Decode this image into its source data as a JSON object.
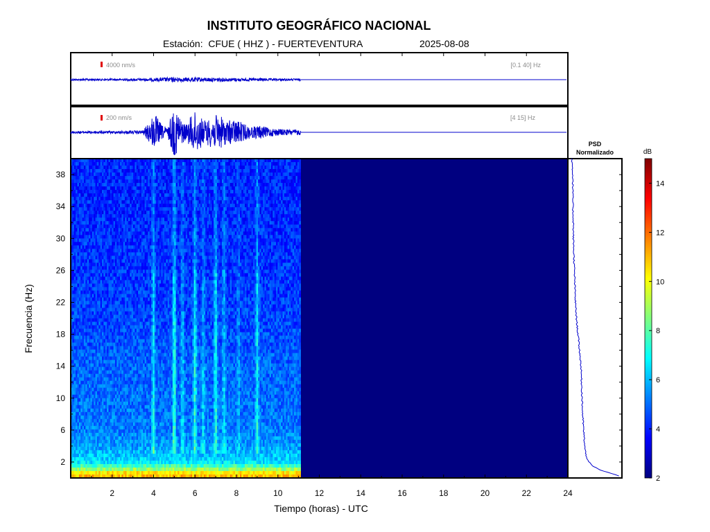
{
  "header": {
    "title": "INSTITUTO GEOGRÁFICO NACIONAL",
    "station": "Estación:  CFUE ( HHZ ) - FUERTEVENTURA",
    "date": "2025-08-08"
  },
  "colors": {
    "trace": "#0000cc",
    "scale_marker": "#e00000",
    "empty_spectrogram": "#000080",
    "annotation_gray": "#8a8a8a"
  },
  "chart_data": [
    {
      "type": "line",
      "panel": "broadband seismogram",
      "scale_label": "4000 nm/s",
      "filter_label": "[0.1 40] Hz",
      "x_range_hours": [
        0,
        24
      ],
      "data_until_hours": 11.1,
      "envelope_hours": [
        0,
        0.5,
        1,
        1.5,
        2,
        2.5,
        3,
        3.5,
        4,
        4.5,
        5,
        5.5,
        6,
        6.5,
        7,
        7.5,
        8,
        8.5,
        9,
        9.5,
        10,
        10.5,
        11
      ],
      "envelope_amplitude": [
        0.04,
        0.04,
        0.05,
        0.04,
        0.05,
        0.05,
        0.06,
        0.06,
        0.08,
        0.1,
        0.12,
        0.1,
        0.11,
        0.1,
        0.1,
        0.09,
        0.08,
        0.07,
        0.08,
        0.06,
        0.05,
        0.05,
        0.05
      ]
    },
    {
      "type": "line",
      "panel": "filtered seismogram",
      "scale_label": "200 nm/s",
      "filter_label": "[4 15] Hz",
      "x_range_hours": [
        0,
        24
      ],
      "data_until_hours": 11.1,
      "envelope_hours": [
        0,
        0.5,
        1,
        1.5,
        2,
        2.5,
        3,
        3.5,
        3.9,
        4.1,
        4.4,
        4.7,
        4.9,
        5.1,
        5.4,
        5.6,
        5.9,
        6.1,
        6.4,
        6.6,
        6.9,
        7.1,
        7.4,
        7.6,
        7.9,
        8.2,
        8.5,
        8.8,
        9.1,
        9.5,
        10,
        10.5,
        11
      ],
      "envelope_amplitude": [
        0.05,
        0.05,
        0.06,
        0.05,
        0.06,
        0.06,
        0.07,
        0.08,
        0.6,
        0.75,
        0.3,
        0.2,
        0.95,
        1.0,
        0.45,
        0.35,
        0.85,
        0.9,
        0.5,
        0.55,
        0.7,
        0.75,
        0.6,
        0.5,
        0.55,
        0.45,
        0.3,
        0.25,
        0.3,
        0.2,
        0.15,
        0.12,
        0.12
      ]
    },
    {
      "type": "heatmap",
      "panel": "spectrogram",
      "xlabel": "Tiempo (horas) - UTC",
      "ylabel": "Frecuencia  (Hz)",
      "xlim": [
        0,
        24
      ],
      "ylim": [
        0,
        40
      ],
      "xticks": [
        2,
        4,
        6,
        8,
        10,
        12,
        14,
        16,
        18,
        20,
        22,
        24
      ],
      "yticks": [
        2,
        6,
        10,
        14,
        18,
        22,
        26,
        30,
        34,
        38
      ],
      "data_until_hours": 11.1,
      "band_hours": [
        4,
        5,
        5.4,
        6,
        6.4,
        7,
        7.4,
        8.1,
        9
      ],
      "band_strength_db": [
        6.5,
        7.5,
        6,
        7,
        6,
        7,
        6,
        5.5,
        6.5
      ],
      "background_db_by_frequency": {
        "freq_hz": [
          0.5,
          1,
          2,
          4,
          6,
          10,
          14,
          18,
          22,
          26,
          30,
          34,
          38,
          40
        ],
        "db": [
          11,
          9,
          6.5,
          5.6,
          5.2,
          5,
          4.9,
          4.6,
          4.4,
          4.3,
          4.2,
          4.1,
          4.1,
          4.1
        ]
      },
      "colorbar": {
        "label": "dB",
        "range": [
          2,
          15
        ],
        "ticks": [
          2,
          4,
          6,
          8,
          10,
          12,
          14
        ],
        "colormap": "jet"
      }
    },
    {
      "type": "line",
      "panel": "normalized PSD",
      "title_line1": "PSD",
      "title_line2": "Normalizado",
      "freq_hz": [
        0.2,
        0.6,
        1,
        1.5,
        2,
        3,
        4,
        5,
        6,
        7,
        8,
        10,
        12,
        14,
        16,
        18,
        20,
        22,
        24,
        26,
        28,
        30,
        32,
        34,
        36,
        38,
        39,
        40
      ],
      "psd_normalized": [
        1.0,
        0.8,
        0.6,
        0.45,
        0.38,
        0.32,
        0.3,
        0.29,
        0.28,
        0.27,
        0.26,
        0.25,
        0.24,
        0.23,
        0.2,
        0.17,
        0.14,
        0.12,
        0.11,
        0.1,
        0.09,
        0.08,
        0.08,
        0.07,
        0.07,
        0.07,
        0.06,
        0.05
      ]
    }
  ]
}
